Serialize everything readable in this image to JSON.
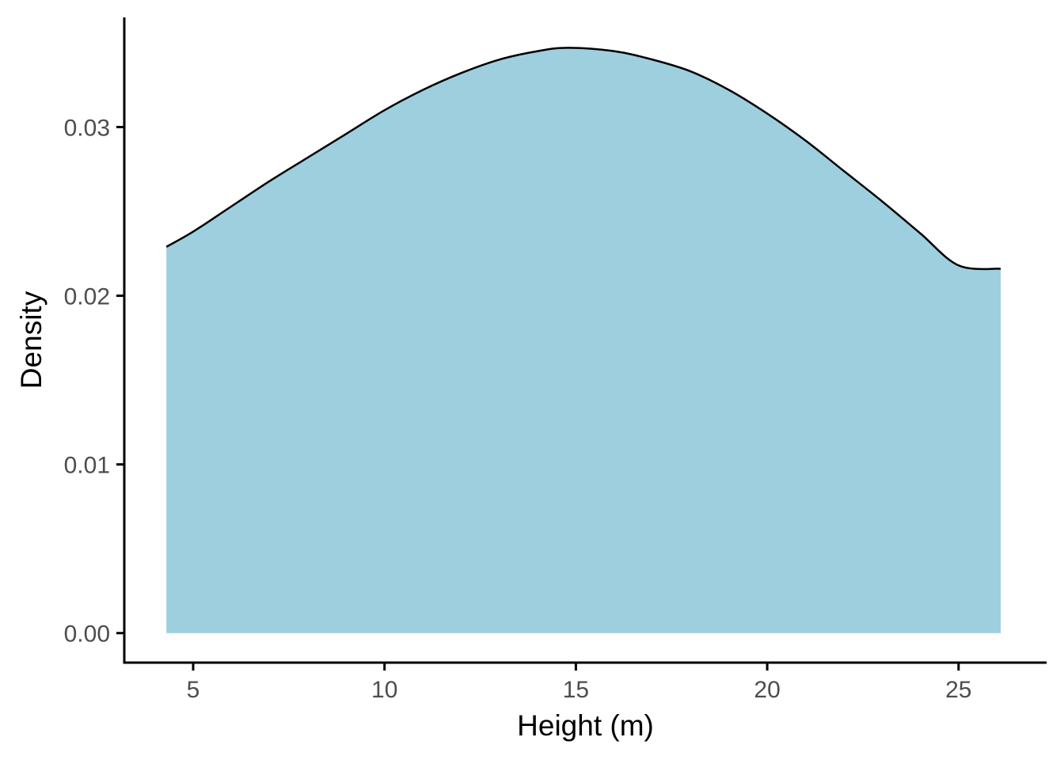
{
  "chart_data": {
    "type": "area",
    "title": "",
    "xlabel": "Height (m)",
    "ylabel": "Density",
    "xlim": [
      3.2,
      27.3
    ],
    "ylim": [
      -0.00175,
      0.0365
    ],
    "x_ticks": [
      5,
      10,
      15,
      20,
      25
    ],
    "x_tick_labels": [
      "5",
      "10",
      "15",
      "20",
      "25"
    ],
    "y_ticks": [
      0.0,
      0.01,
      0.02,
      0.03
    ],
    "y_tick_labels": [
      "0.00",
      "0.01",
      "0.02",
      "0.03"
    ],
    "grid": false,
    "legend": "none",
    "fill_color": "#9ecfdf",
    "line_color": "#000000",
    "series": [
      {
        "x": [
          4.3,
          5,
          6,
          7,
          8,
          9,
          10,
          11,
          12,
          13,
          14,
          14.8,
          16,
          17,
          18,
          19,
          20,
          21,
          22,
          23,
          24,
          25,
          26.1
        ],
        "values": [
          0.0229,
          0.0238,
          0.0253,
          0.0268,
          0.0282,
          0.0296,
          0.031,
          0.0322,
          0.0332,
          0.034,
          0.0345,
          0.0347,
          0.0345,
          0.034,
          0.0333,
          0.0322,
          0.0308,
          0.0292,
          0.0274,
          0.0256,
          0.0237,
          0.0218,
          0.0216
        ]
      }
    ]
  }
}
